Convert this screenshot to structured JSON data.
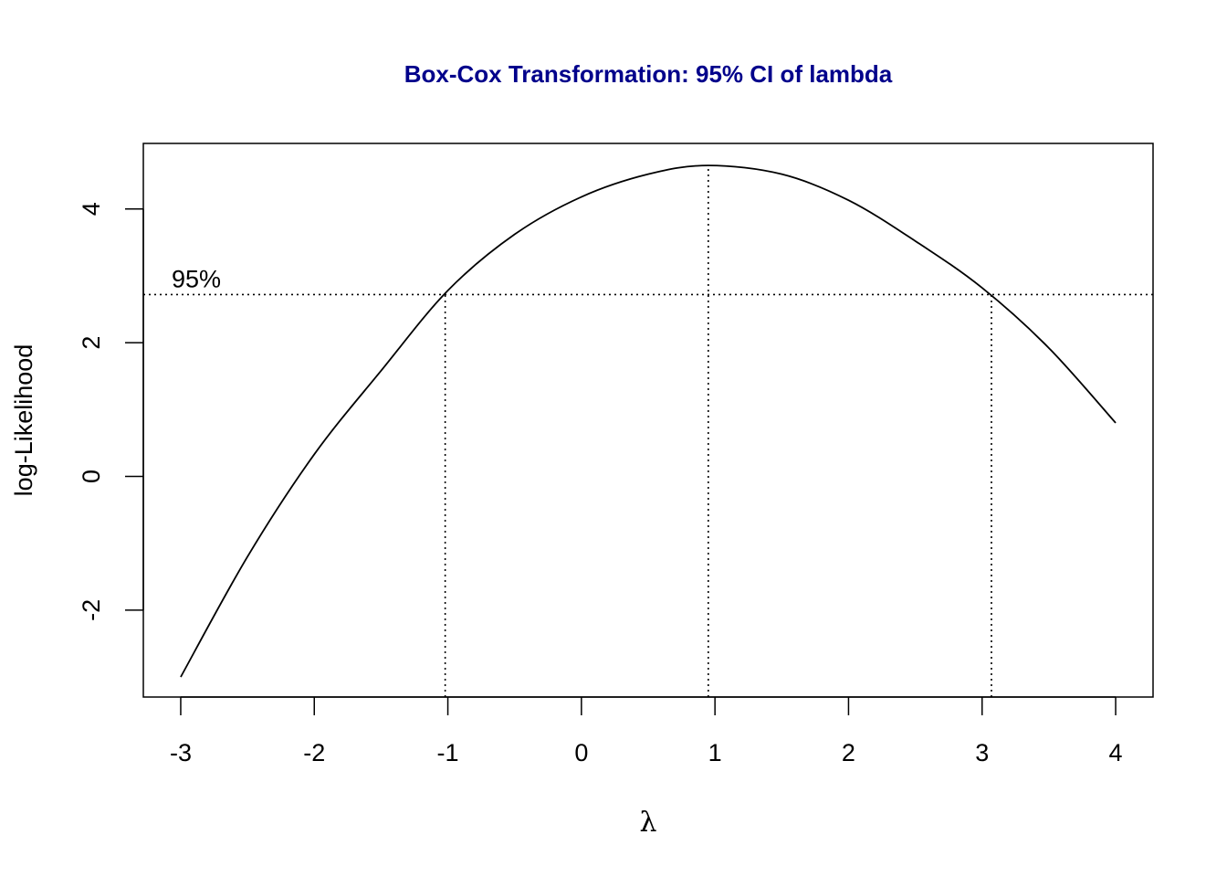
{
  "chart_data": {
    "type": "line",
    "title": "Box-Cox Transformation: 95% CI of lambda",
    "title_color": "#00008B",
    "xlabel": "λ",
    "ylabel": "log-Likelihood",
    "xlim": [
      -3.28,
      4.28
    ],
    "ylim": [
      -3.3,
      4.98
    ],
    "x_ticks": [
      -3,
      -2,
      -1,
      0,
      1,
      2,
      3,
      4
    ],
    "x_tick_labels": [
      "-3",
      "-2",
      "-1",
      "0",
      "1",
      "2",
      "3",
      "4"
    ],
    "y_ticks": [
      -2,
      0,
      2,
      4
    ],
    "y_tick_labels": [
      "-2",
      "0",
      "2",
      "4"
    ],
    "grid": false,
    "series": [
      {
        "x": [
          -3.0,
          -2.5,
          -2.0,
          -1.5,
          -1.0,
          -0.5,
          0.0,
          0.5,
          0.95,
          1.5,
          2.0,
          2.5,
          3.0,
          3.5,
          4.0
        ],
        "y": [
          -3.0,
          -1.2,
          0.33,
          1.58,
          2.78,
          3.62,
          4.18,
          4.52,
          4.65,
          4.52,
          4.13,
          3.52,
          2.82,
          1.92,
          0.8
        ]
      }
    ],
    "annotations": {
      "ci_label": "95%",
      "ci_level_y": 2.72,
      "lambda_hat": 0.95,
      "ci_lower": -1.02,
      "ci_upper": 3.07
    }
  }
}
